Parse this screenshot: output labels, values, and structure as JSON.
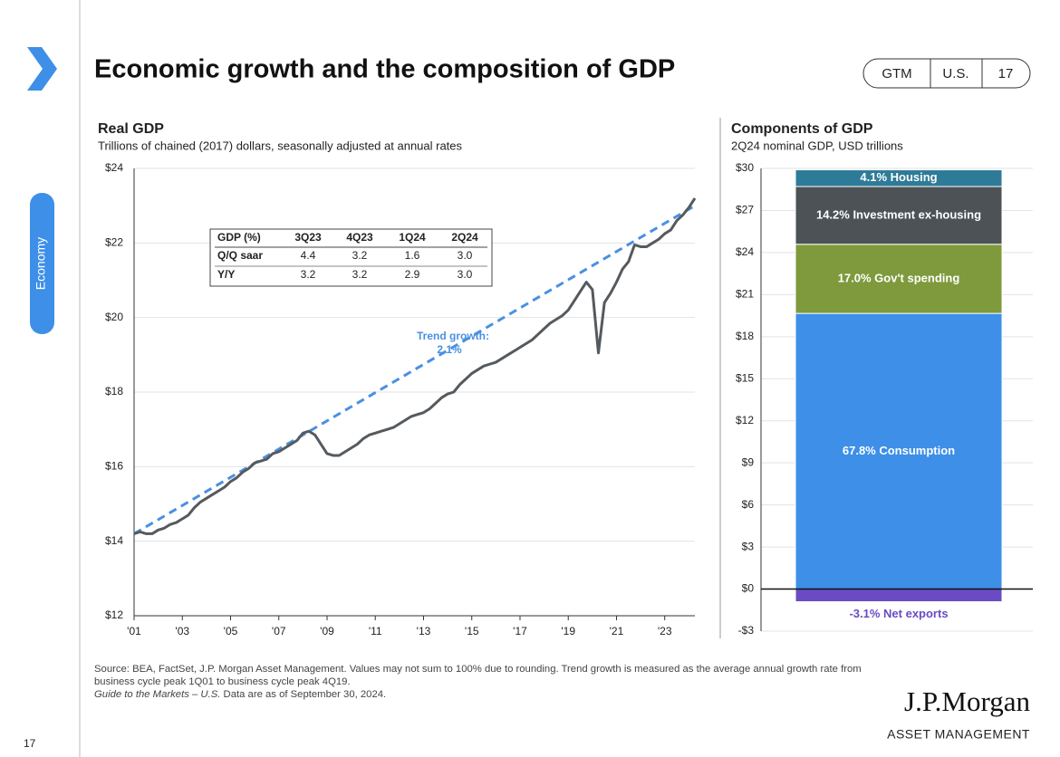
{
  "header": {
    "title": "Economic growth and the composition of GDP",
    "badges": [
      "GTM",
      "U.S.",
      "17"
    ],
    "section": "Economy",
    "page": "17"
  },
  "chart_data": [
    {
      "type": "line",
      "title": "Real GDP",
      "subtitle": "Trillions of chained (2017) dollars, seasonally adjusted at annual rates",
      "x": [
        2001,
        2001.25,
        2001.5,
        2001.75,
        2002,
        2002.25,
        2002.5,
        2002.75,
        2003,
        2003.25,
        2003.5,
        2003.75,
        2004,
        2004.25,
        2004.5,
        2004.75,
        2005,
        2005.25,
        2005.5,
        2005.75,
        2006,
        2006.25,
        2006.5,
        2006.75,
        2007,
        2007.25,
        2007.5,
        2007.75,
        2008,
        2008.25,
        2008.5,
        2008.75,
        2009,
        2009.25,
        2009.5,
        2009.75,
        2010,
        2010.25,
        2010.5,
        2010.75,
        2011,
        2011.25,
        2011.5,
        2011.75,
        2012,
        2012.25,
        2012.5,
        2012.75,
        2013,
        2013.25,
        2013.5,
        2013.75,
        2014,
        2014.25,
        2014.5,
        2014.75,
        2015,
        2015.25,
        2015.5,
        2015.75,
        2016,
        2016.25,
        2016.5,
        2016.75,
        2017,
        2017.25,
        2017.5,
        2017.75,
        2018,
        2018.25,
        2018.5,
        2018.75,
        2019,
        2019.25,
        2019.5,
        2019.75,
        2020,
        2020.25,
        2020.5,
        2020.75,
        2021,
        2021.25,
        2021.5,
        2021.75,
        2022,
        2022.25,
        2022.5,
        2022.75,
        2023,
        2023.25,
        2023.5,
        2023.75,
        2024,
        2024.25
      ],
      "series": [
        {
          "color": "#555a5e",
          "values": [
            14.2,
            14.25,
            14.2,
            14.2,
            14.3,
            14.35,
            14.45,
            14.5,
            14.6,
            14.7,
            14.9,
            15.05,
            15.15,
            15.25,
            15.35,
            15.45,
            15.6,
            15.7,
            15.85,
            15.95,
            16.1,
            16.15,
            16.2,
            16.35,
            16.4,
            16.5,
            16.6,
            16.7,
            16.9,
            16.95,
            16.85,
            16.6,
            16.35,
            16.3,
            16.3,
            16.4,
            16.5,
            16.6,
            16.75,
            16.85,
            16.9,
            16.95,
            17.0,
            17.05,
            17.15,
            17.25,
            17.35,
            17.4,
            17.45,
            17.55,
            17.7,
            17.85,
            17.95,
            18.0,
            18.2,
            18.35,
            18.5,
            18.6,
            18.7,
            18.75,
            18.8,
            18.9,
            19.0,
            19.1,
            19.2,
            19.3,
            19.4,
            19.55,
            19.7,
            19.85,
            19.95,
            20.05,
            20.2,
            20.45,
            20.7,
            20.95,
            20.75,
            19.05,
            20.4,
            20.65,
            20.95,
            21.3,
            21.5,
            21.95,
            21.9,
            21.9,
            22.0,
            22.1,
            22.25,
            22.35,
            22.6,
            22.75,
            22.95,
            23.2
          ]
        }
      ],
      "trend": {
        "x": [
          2001,
          2024.25
        ],
        "values": [
          14.2,
          23.0
        ],
        "color": "#4a90e2",
        "label": [
          "Trend growth:",
          "2.1%"
        ]
      },
      "xlim": [
        2001,
        2024.25
      ],
      "xticks": [
        {
          "value": 2001,
          "label": "'01"
        },
        {
          "value": 2003,
          "label": "'03"
        },
        {
          "value": 2005,
          "label": "'05"
        },
        {
          "value": 2007,
          "label": "'07"
        },
        {
          "value": 2009,
          "label": "'09"
        },
        {
          "value": 2011,
          "label": "'11"
        },
        {
          "value": 2013,
          "label": "'13"
        },
        {
          "value": 2015,
          "label": "'15"
        },
        {
          "value": 2017,
          "label": "'17"
        },
        {
          "value": 2019,
          "label": "'19"
        },
        {
          "value": 2021,
          "label": "'21"
        },
        {
          "value": 2023,
          "label": "'23"
        }
      ],
      "ylim": [
        12,
        24
      ],
      "yticks": [
        {
          "value": 12,
          "label": "$12"
        },
        {
          "value": 14,
          "label": "$14"
        },
        {
          "value": 16,
          "label": "$16"
        },
        {
          "value": 18,
          "label": "$18"
        },
        {
          "value": 20,
          "label": "$20"
        },
        {
          "value": 22,
          "label": "$22"
        },
        {
          "value": 24,
          "label": "$24"
        }
      ],
      "grid": true,
      "table": {
        "header": [
          "GDP (%)",
          "3Q23",
          "4Q23",
          "1Q24",
          "2Q24"
        ],
        "rows": [
          [
            "Q/Q saar",
            "4.4",
            "3.2",
            "1.6",
            "3.0"
          ],
          [
            "Y/Y",
            "3.2",
            "3.2",
            "2.9",
            "3.0"
          ]
        ]
      }
    },
    {
      "type": "bar",
      "stacked": true,
      "title": "Components of GDP",
      "subtitle": "2Q24 nominal GDP, USD trillions",
      "series": [
        {
          "name": "67.8% Consumption",
          "color": "#3d8fe8",
          "values": [
            19.66
          ]
        },
        {
          "name": "17.0% Gov't spending",
          "color": "#7e9a3c",
          "values": [
            4.93
          ]
        },
        {
          "name": "14.2% Investment ex-housing",
          "color": "#4d5256",
          "values": [
            4.12
          ]
        },
        {
          "name": "4.1% Housing",
          "color": "#2e7b98",
          "values": [
            1.19
          ]
        },
        {
          "name": "-3.1% Net exports",
          "color": "#6a4bc4",
          "values": [
            -0.9
          ]
        }
      ],
      "ylim": [
        -3,
        30
      ],
      "yticks": [
        {
          "value": -3,
          "label": "-$3"
        },
        {
          "value": 0,
          "label": "$0"
        },
        {
          "value": 3,
          "label": "$3"
        },
        {
          "value": 6,
          "label": "$6"
        },
        {
          "value": 9,
          "label": "$9"
        },
        {
          "value": 12,
          "label": "$12"
        },
        {
          "value": 15,
          "label": "$15"
        },
        {
          "value": 18,
          "label": "$18"
        },
        {
          "value": 21,
          "label": "$21"
        },
        {
          "value": 24,
          "label": "$24"
        },
        {
          "value": 27,
          "label": "$27"
        },
        {
          "value": 30,
          "label": "$30"
        }
      ],
      "grid": true
    }
  ],
  "footer": {
    "source": "Source: BEA, FactSet, J.P. Morgan Asset Management. Values may not sum to 100% due to rounding. Trend growth is measured as the average annual growth rate from business cycle peak 1Q01 to business cycle peak 4Q19.",
    "guide": "Guide to the Markets – U.S.",
    "asof": "Data are as of September 30, 2024.",
    "logo": "J.P.Morgan",
    "logo_sub": "ASSET MANAGEMENT"
  }
}
